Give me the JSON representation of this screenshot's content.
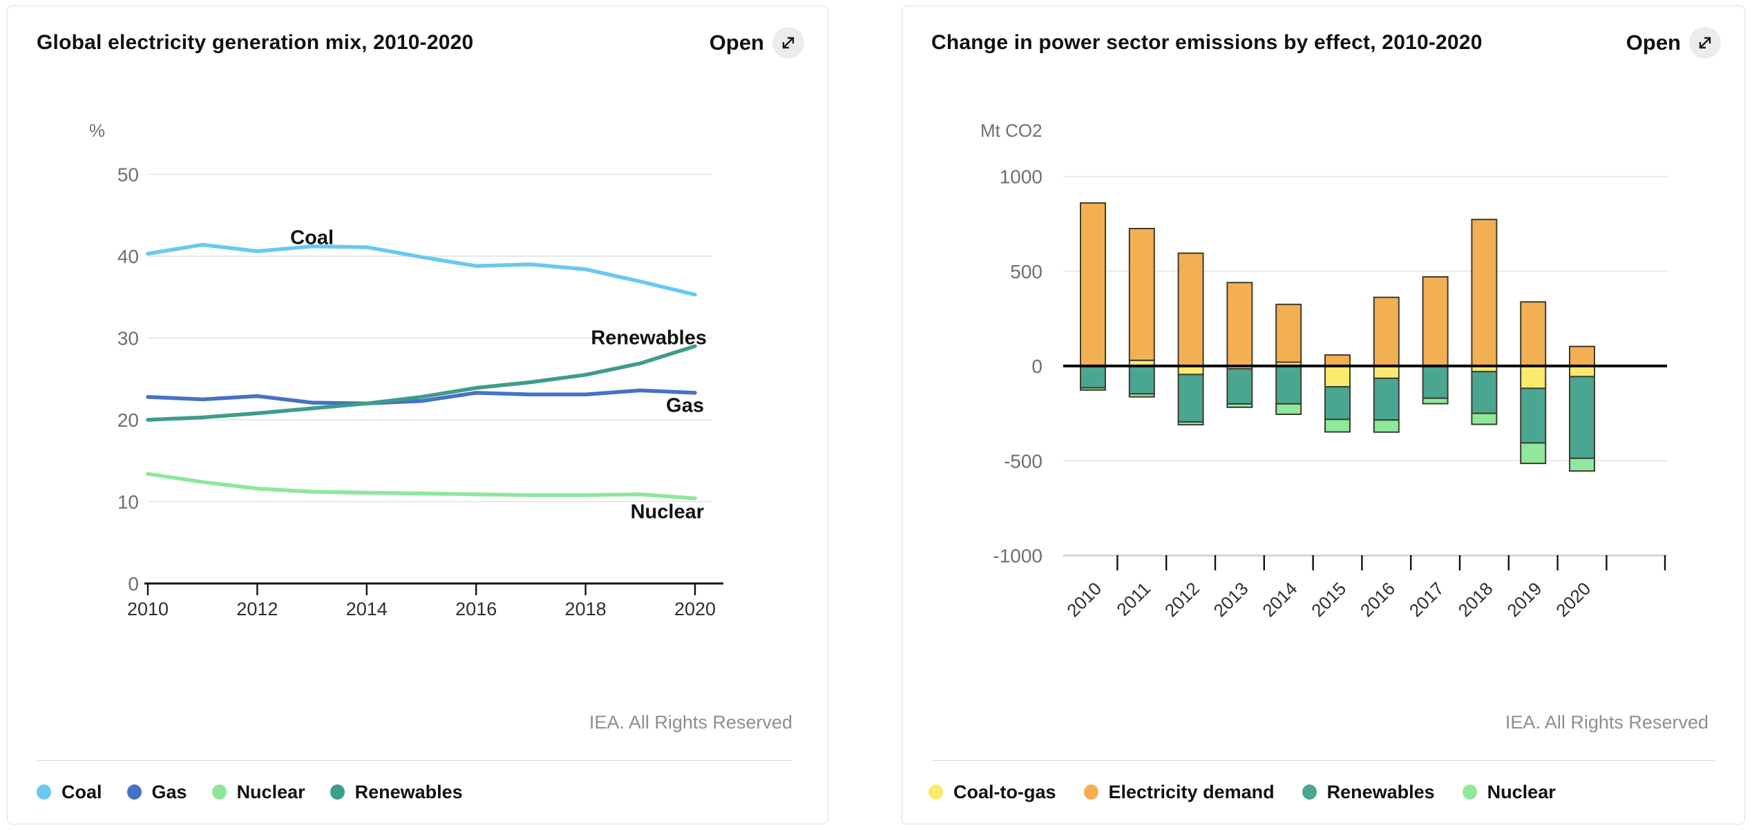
{
  "ui": {
    "open_label": "Open",
    "rights": "IEA. All Rights Reserved"
  },
  "panels": [
    {
      "title": "Global electricity generation mix, 2010-2020"
    },
    {
      "title": "Change in power sector emissions by effect, 2010-2020"
    }
  ],
  "chart_data": [
    {
      "type": "line",
      "title": "Global electricity generation mix, 2010-2020",
      "ylabel": "%",
      "xlabel": "",
      "ylim": [
        0,
        50
      ],
      "yticks": [
        0,
        10,
        20,
        30,
        40,
        50
      ],
      "x": [
        2010,
        2011,
        2012,
        2013,
        2014,
        2015,
        2016,
        2017,
        2018,
        2019,
        2020
      ],
      "xticks": [
        2010,
        2012,
        2014,
        2016,
        2018,
        2020
      ],
      "grid": true,
      "legend_position": "bottom",
      "series": [
        {
          "name": "Coal",
          "color": "#69C8F1",
          "values": [
            40.3,
            41.4,
            40.6,
            41.2,
            41.1,
            39.9,
            38.8,
            39.0,
            38.4,
            36.9,
            35.3
          ]
        },
        {
          "name": "Gas",
          "color": "#4671C6",
          "values": [
            22.8,
            22.5,
            22.9,
            22.1,
            22.0,
            22.3,
            23.3,
            23.1,
            23.1,
            23.6,
            23.3
          ]
        },
        {
          "name": "Nuclear",
          "color": "#8DE79B",
          "values": [
            13.4,
            12.4,
            11.6,
            11.2,
            11.1,
            11.0,
            10.9,
            10.8,
            10.8,
            10.9,
            10.4
          ]
        },
        {
          "name": "Renewables",
          "color": "#3E9C8B",
          "values": [
            20.0,
            20.3,
            20.8,
            21.4,
            22.0,
            22.8,
            23.9,
            24.6,
            25.5,
            26.9,
            29.0
          ]
        }
      ],
      "annotations": [
        {
          "text": "Coal",
          "x": 2013,
          "y": 42.3,
          "anchor": "middle",
          "dx": 0
        },
        {
          "text": "Renewables",
          "x": 2020,
          "y": 30.1,
          "anchor": "end",
          "dx": 17
        },
        {
          "text": "Gas",
          "x": 2020,
          "y": 21.8,
          "anchor": "end",
          "dx": 13
        },
        {
          "text": "Nuclear",
          "x": 2020,
          "y": 8.8,
          "anchor": "end",
          "dx": 13
        }
      ]
    },
    {
      "type": "bar",
      "stacked": true,
      "title": "Change in power sector emissions by effect, 2010-2020",
      "ylabel": "Mt CO2",
      "xlabel": "",
      "ylim": [
        -1000,
        1000
      ],
      "yticks": [
        1000,
        500,
        0,
        -500,
        -1000
      ],
      "categories": [
        2010,
        2011,
        2012,
        2013,
        2014,
        2015,
        2016,
        2017,
        2018,
        2019,
        2020
      ],
      "grid": true,
      "legend_position": "bottom",
      "series": [
        {
          "name": "Coal-to-gas",
          "color": "#FAEA6E",
          "values": [
            0,
            30,
            -45,
            -15,
            20,
            -110,
            -65,
            0,
            -30,
            -118,
            -56
          ]
        },
        {
          "name": "Electricity demand",
          "color": "#F3B052",
          "values": [
            860,
            695,
            595,
            440,
            305,
            58,
            362,
            470,
            773,
            338,
            103
          ]
        },
        {
          "name": "Renewables",
          "color": "#4BA691",
          "values": [
            -115,
            -147,
            -250,
            -185,
            -200,
            -172,
            -220,
            -170,
            -220,
            -288,
            -431
          ]
        },
        {
          "name": "Nuclear",
          "color": "#90E89B",
          "values": [
            -12,
            -16,
            -15,
            -18,
            -55,
            -66,
            -64,
            -29,
            -58,
            -108,
            -67
          ]
        }
      ]
    }
  ]
}
